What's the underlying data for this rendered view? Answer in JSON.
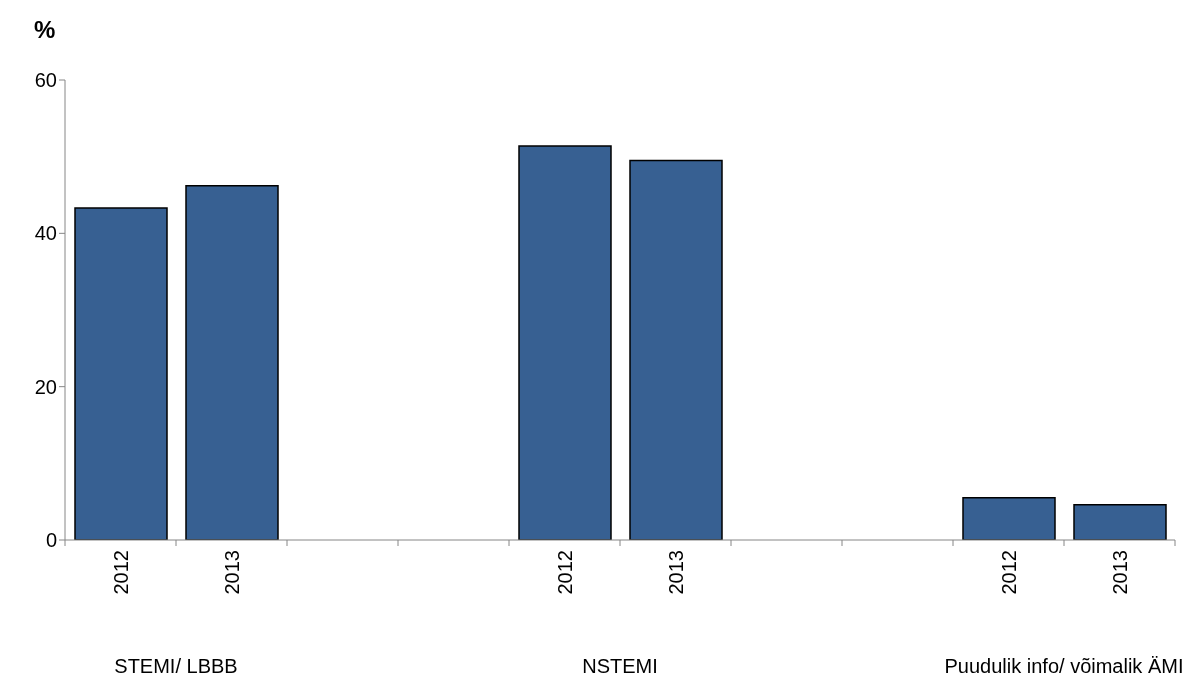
{
  "chart_data": {
    "type": "bar",
    "ylabel": "%",
    "categories": [
      "2012",
      "2013",
      null,
      null,
      "2012",
      "2013",
      null,
      null,
      "2012",
      "2013"
    ],
    "values": [
      43.3,
      46.2,
      null,
      null,
      51.4,
      49.5,
      null,
      null,
      5.5,
      4.6
    ],
    "color": "#376092",
    "ylim": [
      0,
      60
    ],
    "yticks": [
      0,
      20,
      40,
      60
    ],
    "grid": false,
    "legend": false,
    "annotations": [
      "STEMI/ LBBB",
      "NSTEMI",
      "Puudulik info/ võimalik ÄMI"
    ]
  }
}
